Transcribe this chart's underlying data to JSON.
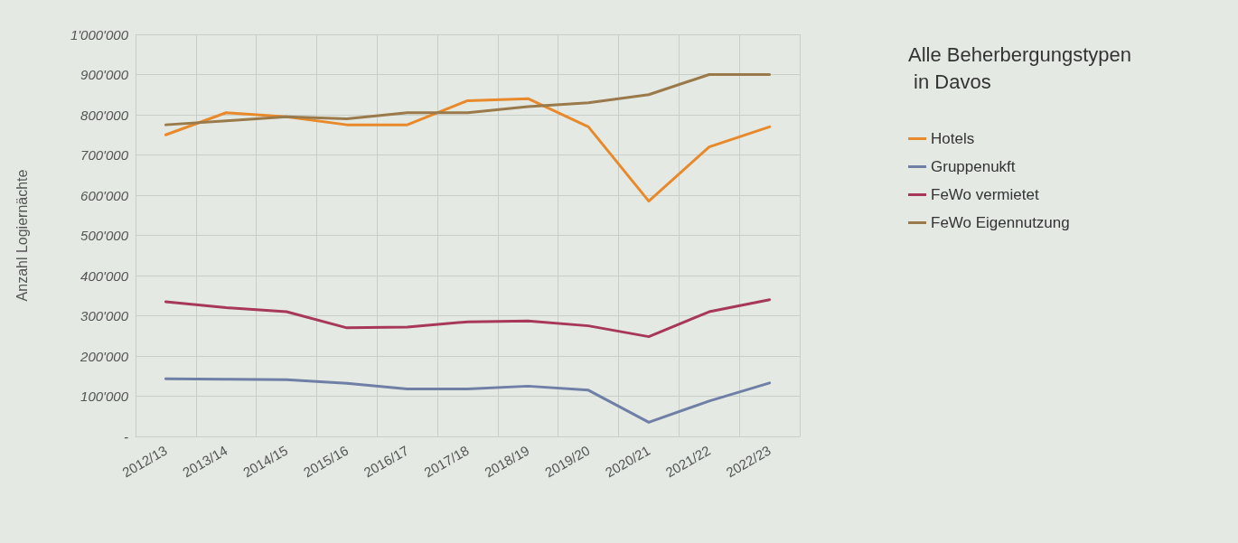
{
  "chart_data": {
    "type": "line",
    "title": "Alle Beherbergungstypen\n in Davos",
    "ylabel": "Anzahl Logiernächte",
    "categories": [
      "2012/13",
      "2013/14",
      "2014/15",
      "2015/16",
      "2016/17",
      "2017/18",
      "2018/19",
      "2019/20",
      "2020/21",
      "2021/22",
      "2022/23"
    ],
    "series": [
      {
        "name": "Hotels",
        "color": "#e8892b",
        "values": [
          750000,
          805000,
          795000,
          775000,
          775000,
          835000,
          840000,
          770000,
          585000,
          720000,
          770000
        ]
      },
      {
        "name": "Gruppenukft",
        "color": "#6f7fa6",
        "values": [
          143000,
          142000,
          141000,
          132000,
          118000,
          118000,
          125000,
          115000,
          35000,
          88000,
          133000
        ]
      },
      {
        "name": "FeWo vermietet",
        "color": "#a8385a",
        "values": [
          335000,
          320000,
          310000,
          270000,
          272000,
          285000,
          287000,
          275000,
          248000,
          310000,
          340000
        ]
      },
      {
        "name": "FeWo Eigennutzung",
        "color": "#9a7a4a",
        "values": [
          775000,
          785000,
          795000,
          790000,
          805000,
          805000,
          820000,
          830000,
          850000,
          900000,
          900000
        ]
      }
    ],
    "ylim": [
      0,
      1000000
    ],
    "yticks": [
      {
        "value": 0,
        "label": "-"
      },
      {
        "value": 100000,
        "label": "100'000"
      },
      {
        "value": 200000,
        "label": "200'000"
      },
      {
        "value": 300000,
        "label": "300'000"
      },
      {
        "value": 400000,
        "label": "400'000"
      },
      {
        "value": 500000,
        "label": "500'000"
      },
      {
        "value": 600000,
        "label": "600'000"
      },
      {
        "value": 700000,
        "label": "700'000"
      },
      {
        "value": 800000,
        "label": "800'000"
      },
      {
        "value": 900000,
        "label": "900'000"
      },
      {
        "value": 1000000,
        "label": "1'000'000"
      }
    ],
    "grid": true,
    "legend": "right",
    "marker": "none",
    "line_style": "solid"
  }
}
